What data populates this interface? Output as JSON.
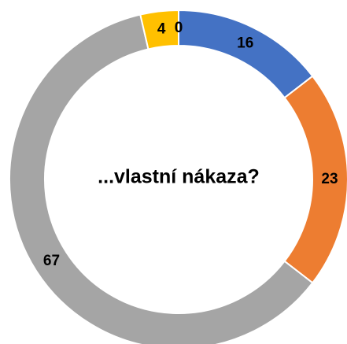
{
  "chart_data": {
    "type": "donut",
    "title": "...vlastní nákaza?",
    "values": [
      16,
      23,
      67,
      4,
      0
    ],
    "colors": [
      "#4472c4",
      "#ed7d31",
      "#a5a5a5",
      "#ffc000",
      "#5b9bd5"
    ]
  }
}
